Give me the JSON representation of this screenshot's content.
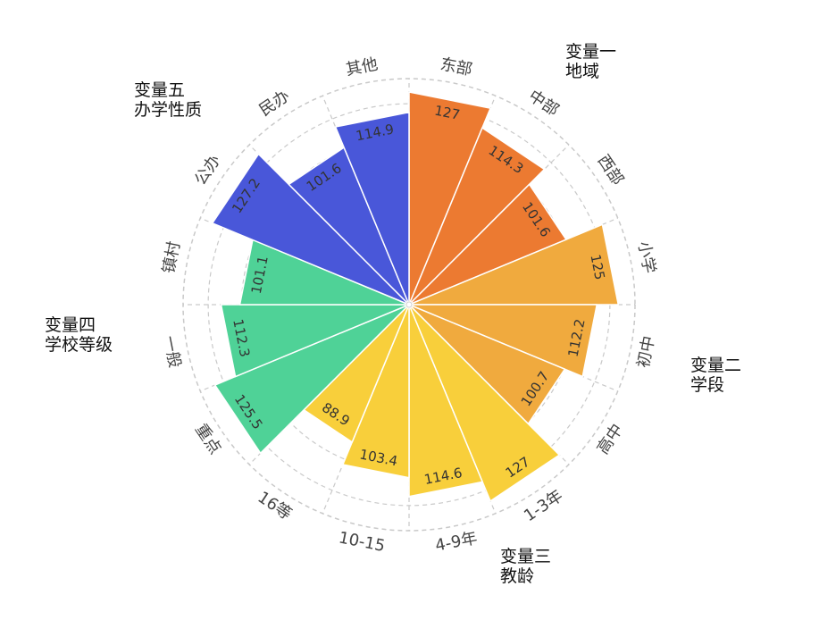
{
  "chart_data": {
    "type": "polar-bar",
    "max": 135,
    "ring_step": 20,
    "categories": [
      "东部",
      "中部",
      "西部",
      "小学",
      "初中",
      "高中",
      "1-3年",
      "4-9年",
      "10-15",
      "16等",
      "重点",
      "一般",
      "镇村",
      "公办",
      "民办",
      "其他"
    ],
    "values": [
      127,
      114.3,
      101.6,
      125,
      112.2,
      100.7,
      127,
      114.6,
      103.4,
      88.9,
      125.5,
      112.3,
      101.1,
      127.2,
      101.6,
      114.9
    ],
    "value_labels": [
      "127",
      "114.3",
      "101.6",
      "125",
      "112.2",
      "100.7",
      "127",
      "114.6",
      "103.4",
      "88.9",
      "125.5",
      "112.3",
      "101.1",
      "127.2",
      "101.6",
      "114.9"
    ],
    "bar_colors": [
      "#ec7a31",
      "#ec7a31",
      "#ec7a31",
      "#f0aa3e",
      "#f0aa3e",
      "#f0aa3e",
      "#f8cf3b",
      "#f8cf3b",
      "#f8cf3b",
      "#f8cf3b",
      "#4fd297",
      "#4fd297",
      "#4fd297",
      "#4957d9",
      "#4957d9",
      "#4957d9"
    ],
    "groups": [
      {
        "lines": [
          "变量一",
          "地域"
        ]
      },
      {
        "lines": [
          "变量二",
          "学段"
        ]
      },
      {
        "lines": [
          "变量三",
          "教龄"
        ]
      },
      {
        "lines": [
          "变量四",
          "学校等级"
        ]
      },
      {
        "lines": [
          "变量五",
          "办学性质"
        ]
      }
    ]
  }
}
